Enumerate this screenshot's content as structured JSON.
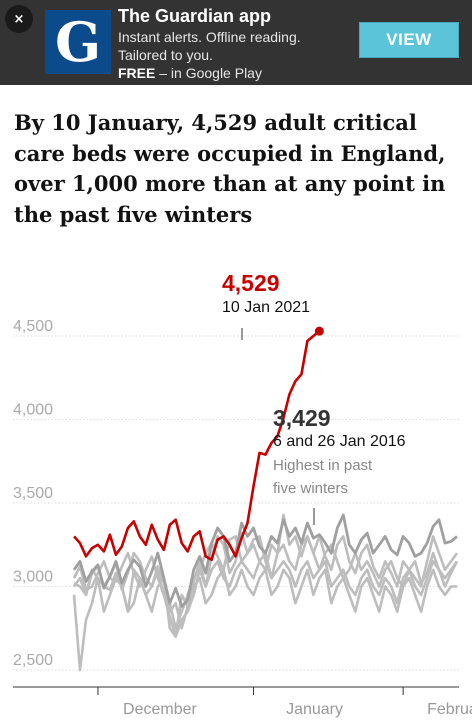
{
  "banner": {
    "close_label": "×",
    "logo_letter": "G",
    "app_name": "The Guardian app",
    "line1": "Instant alerts. Offline reading.",
    "line2": "Tailored to you.",
    "line3_bold": "FREE",
    "line3_rest": " – in Google Play",
    "view_label": "VIEW",
    "colors": {
      "background": "#333333",
      "logo": "#0b4a8b",
      "button": "#5bc4d8"
    }
  },
  "headline": "By 10 January, 4,529 adult critical care beds were occupied in England, over 1,000 more than at any point in the past five winters",
  "chart_data": {
    "type": "line",
    "title": "",
    "xlabel": "",
    "ylabel": "",
    "ylim": [
      2450,
      4650
    ],
    "yticks": [
      2500,
      3000,
      3500,
      4000,
      4500
    ],
    "ytick_labels": [
      "2,500",
      "3,000",
      "3,500",
      "4,000",
      "4,500"
    ],
    "xticks": [
      "December",
      "January",
      "February"
    ],
    "x_range": [
      0,
      64
    ],
    "x_tick_positions": [
      4,
      30,
      55
    ],
    "grid": true,
    "colors": {
      "current": "#c70000",
      "past": "#bdbdbd",
      "past_dark": "#a0a0a0"
    },
    "series": [
      {
        "values": [
          3300,
          3260,
          3180,
          3230,
          3250,
          3210,
          3310,
          3190,
          3240,
          3350,
          3390,
          3300,
          3250,
          3370,
          3280,
          3220,
          3370,
          3400,
          3260,
          3210,
          3300,
          3330,
          3180,
          3160,
          3280,
          3300,
          3250,
          3180,
          3290,
          3380,
          3600,
          3800,
          3790,
          3860,
          3900,
          4010,
          4150,
          4230,
          4270,
          4470,
          4500,
          4529
        ]
      },
      {
        "values": [
          3100,
          3150,
          3030,
          3090,
          3130,
          2990,
          3060,
          3150,
          3020,
          3100,
          3160,
          3120,
          3000,
          3090,
          3200,
          3050,
          2900,
          2990,
          2880,
          2920,
          3100,
          3180,
          3080,
          3260,
          3350,
          3300,
          3150,
          3200,
          3380,
          3300,
          3350,
          3240,
          3200,
          3300,
          3260,
          3400,
          3300,
          3350,
          3260,
          3380,
          3290,
          3310,
          3260,
          3200,
          3350,
          3429,
          3250,
          3200,
          3280,
          3320,
          3200,
          3250,
          3300,
          3220,
          3190,
          3300,
          3260,
          3180,
          3200,
          3260,
          3360,
          3400,
          3260,
          3270,
          3300
        ],
        "emphasis": true
      },
      {
        "values": [
          3000,
          3050,
          2950,
          3080,
          3120,
          3000,
          3060,
          3140,
          2980,
          3080,
          3200,
          3150,
          3050,
          3000,
          3120,
          3030,
          2850,
          2900,
          2750,
          2880,
          3030,
          3150,
          3000,
          3180,
          3300,
          3250,
          3080,
          3150,
          3320,
          3200,
          3250,
          3150,
          3100,
          3250,
          3200,
          3429,
          3250,
          3300,
          3180,
          3300,
          3200,
          3300,
          3180,
          3100,
          3250,
          3300,
          3150,
          3080,
          3200,
          3250,
          3120,
          3050,
          3150,
          3080,
          3000,
          3150,
          3100,
          3050,
          3000,
          3150,
          3300,
          3200,
          3100,
          3150,
          3200
        ]
      },
      {
        "values": [
          3050,
          3120,
          2980,
          3000,
          3080,
          3150,
          3050,
          3030,
          3120,
          3200,
          3080,
          3000,
          3100,
          3180,
          3050,
          2950,
          2820,
          2700,
          2800,
          2850,
          2950,
          3100,
          3200,
          3260,
          3180,
          3100,
          3280,
          3300,
          3150,
          3200,
          3280,
          3300,
          3150,
          3050,
          3200,
          3250,
          3150,
          3100,
          3250,
          3300,
          3200,
          3100,
          3200,
          3250,
          3150,
          3050,
          3100,
          3200,
          3100,
          3150,
          3080,
          3000,
          3100,
          3150,
          3050,
          3000,
          3100,
          3150,
          3020,
          3080,
          3200,
          3100,
          3000,
          3080,
          3150
        ]
      },
      {
        "values": [
          2950,
          2500,
          2800,
          2900,
          3050,
          2850,
          2950,
          3050,
          3000,
          2850,
          2900,
          3050,
          2950,
          2850,
          3000,
          3050,
          2750,
          2700,
          2950,
          2880,
          3000,
          3050,
          2900,
          2950,
          3050,
          3100,
          2950,
          3000,
          3100,
          3000,
          2950,
          3050,
          3100,
          2950,
          3000,
          3100,
          3050,
          2900,
          3000,
          3100,
          2950,
          3050,
          3100,
          2900,
          3000,
          3050,
          2950,
          2850,
          3000,
          3050,
          2950,
          2850,
          3000,
          2950,
          2850,
          3000,
          3050,
          2950,
          2850,
          3000,
          3100,
          3000,
          2950,
          3000,
          3000
        ]
      },
      {
        "values": [
          3020,
          3000,
          2950,
          3100,
          3050,
          3000,
          2980,
          3080,
          3000,
          2850,
          3100,
          3050,
          2950,
          3000,
          3100,
          2950,
          2900,
          2750,
          2850,
          2950,
          3050,
          3100,
          3000,
          3100,
          3150,
          3050,
          3000,
          3100,
          3150,
          3100,
          3050,
          3150,
          3200,
          3050,
          3100,
          3150,
          3100,
          3000,
          3100,
          3150,
          3050,
          3100,
          3150,
          3000,
          3050,
          3100,
          3000,
          2950,
          3050,
          3100,
          3000,
          2950,
          3050,
          3000,
          2900,
          3050,
          3100,
          3000,
          2950,
          3050,
          3150,
          3100,
          3050,
          3100,
          3150
        ]
      }
    ],
    "annotations": [
      {
        "value": "4,529",
        "date": "10 Jan 2021"
      },
      {
        "value": "3,429",
        "date": "6 and 26 Jan 2016",
        "note_line1": "Highest in past",
        "note_line2": "five winters"
      }
    ]
  }
}
